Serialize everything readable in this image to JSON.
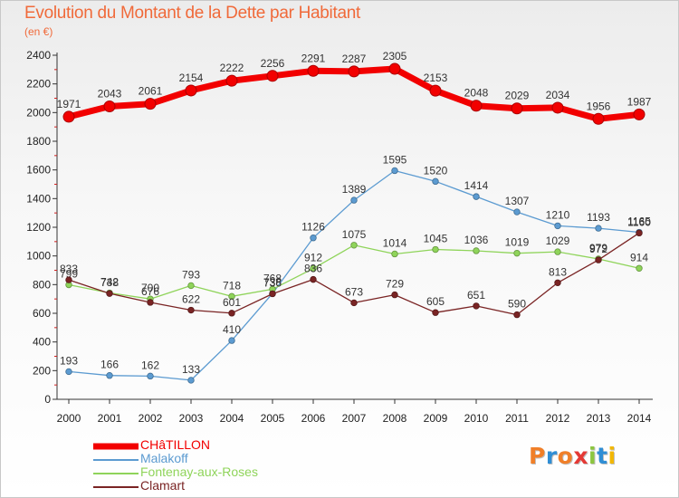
{
  "header": {
    "title": "Evolution du Montant de la Dette par Habitant",
    "subtitle": "(en €)"
  },
  "colors": {
    "title": "#f06a3a",
    "axis_text": "#222222",
    "value_text": "#333333"
  },
  "chart_data": {
    "type": "line",
    "title": "Evolution du Montant de la Dette par Habitant",
    "subtitle": "(en €)",
    "xlabel": "",
    "ylabel": "",
    "ylim": [
      0,
      2400
    ],
    "yticks": [
      0,
      200,
      400,
      600,
      800,
      1000,
      1200,
      1400,
      1600,
      1800,
      2000,
      2200,
      2400
    ],
    "grid": false,
    "legend_position": "bottom-left",
    "x": [
      2000,
      2001,
      2002,
      2003,
      2004,
      2005,
      2006,
      2007,
      2008,
      2009,
      2010,
      2011,
      2012,
      2013,
      2014
    ],
    "series": [
      {
        "name": "CHâTILLON",
        "color": "#f20000",
        "values": [
          1971,
          2043,
          2061,
          2154,
          2222,
          2256,
          2291,
          2287,
          2305,
          2153,
          2048,
          2029,
          2034,
          1956,
          1987
        ]
      },
      {
        "name": "Malakoff",
        "color": "#5c9bd1",
        "values": [
          193,
          166,
          162,
          133,
          410,
          738,
          1126,
          1389,
          1595,
          1520,
          1414,
          1307,
          1210,
          1193,
          1165
        ]
      },
      {
        "name": "Fontenay-aux-Roses",
        "color": "#8fd45a",
        "values": [
          799,
          742,
          700,
          793,
          718,
          768,
          912,
          1075,
          1014,
          1045,
          1036,
          1019,
          1029,
          979,
          914
        ]
      },
      {
        "name": "Clamart",
        "color": "#7a2424",
        "values": [
          833,
          738,
          676,
          622,
          601,
          736,
          836,
          673,
          729,
          605,
          651,
          590,
          813,
          972,
          1160
        ]
      }
    ]
  },
  "logo": {
    "letters": [
      "P",
      "r",
      "o",
      "x",
      "i",
      "t",
      "i"
    ],
    "colors": [
      "#f07f28",
      "#2f8ed5",
      "#f07f28",
      "#e53935",
      "#8cc63f",
      "#2f8ed5",
      "#f2b705"
    ]
  }
}
